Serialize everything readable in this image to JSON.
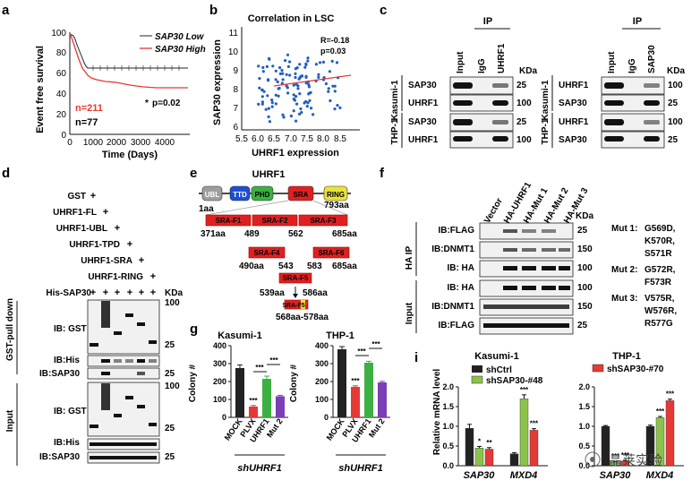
{
  "panel_a": {
    "letter": "a",
    "ylabel": "Event free survival",
    "xlabel": "Time (Days)",
    "legend_low": "SAP30 Low",
    "legend_high": "SAP30 High",
    "p_value": "p=0.02",
    "star": "*",
    "n_high": "n=211",
    "n_low": "n=77",
    "colors": {
      "low": "#222222",
      "high": "#e53935"
    }
  },
  "panel_b": {
    "letter": "b",
    "title": "Correlation in LSC",
    "ylabel": "SAP30 expression",
    "xlabel": "UHRF1 expression",
    "r_value": "R=-0.18",
    "p_value": "p=0.03",
    "point_color": "#1f5fbf",
    "line_color": "#e53935"
  },
  "panel_c": {
    "letter": "c",
    "ip_label": "IP",
    "kda": "KDa",
    "left": {
      "lanes": [
        "Input",
        "IgG",
        "UHRF1"
      ],
      "blots": [
        {
          "cell": "Kasumi-1",
          "protein": "SAP30",
          "mw": "25"
        },
        {
          "cell": "Kasumi-1",
          "protein": "UHRF1",
          "mw": "100"
        },
        {
          "cell": "THP-1",
          "protein": "SAP30",
          "mw": "25"
        },
        {
          "cell": "THP-1",
          "protein": "UHRF1",
          "mw": "100"
        }
      ]
    },
    "right": {
      "lanes": [
        "Input",
        "IgG",
        "SAP30"
      ],
      "blots": [
        {
          "cell": "Kasumi-1",
          "protein": "UHRF1",
          "mw": "100"
        },
        {
          "cell": "Kasumi-1",
          "protein": "SAP30",
          "mw": "25"
        },
        {
          "cell": "THP-1",
          "protein": "UHRF1",
          "mw": "100"
        },
        {
          "cell": "THP-1",
          "protein": "SAP30",
          "mw": "25"
        }
      ]
    },
    "cells": [
      "Kasumi-1",
      "THP-1"
    ]
  },
  "panel_d": {
    "letter": "d",
    "rows": [
      "GST",
      "UHRF1-FL",
      "UHRF1-UBL",
      "UHRF1-TPD",
      "UHRF1-SRA",
      "UHRF1-RING",
      "His-SAP30"
    ],
    "plus": "+",
    "kda": "KDa",
    "section_pulldown": "GST-pull down",
    "section_input": "Input",
    "pulldown_blots": [
      "IB: GST",
      "IB:His",
      "IB:SAP30"
    ],
    "input_blots": [
      "IB: GST",
      "IB:His",
      "IB:SAP30"
    ],
    "mw": [
      "100",
      "25",
      "25",
      "25",
      "100",
      "25"
    ]
  },
  "panel_e": {
    "letter": "e",
    "title": "UHRF1",
    "domains": [
      "UBL",
      "TTD",
      "PHD",
      "SRA",
      "RING"
    ],
    "domain_colors": [
      "#9e9e9e",
      "#1e4fd0",
      "#3cb043",
      "#e02020",
      "#e8e23a"
    ],
    "start": "1aa",
    "end": "793aa",
    "frag1": [
      "SRA-F1",
      "SRA-F2",
      "SRA-F3"
    ],
    "frag1_pos": [
      "371aa",
      "489",
      "562",
      "685aa"
    ],
    "frag2": [
      "SRA-F4",
      "SRA-F6"
    ],
    "frag2_pos": [
      "490aa",
      "543",
      "583",
      "685aa"
    ],
    "frag3": "SRA-F5",
    "frag3_pos": [
      "539aa",
      "586aa"
    ],
    "frag4": "SRA-F5",
    "frag4_pos": "568aa-578aa"
  },
  "panel_f": {
    "letter": "f",
    "lanes": [
      "Vector",
      "HA-UHRF1",
      "HA-Mut 1",
      "HA-Mut 2",
      "HA-Mut 3"
    ],
    "kda": "KDa",
    "section_ip": "HA IP",
    "section_input": "Input",
    "blots_ip": [
      {
        "label": "IB:FLAG",
        "mw": "25"
      },
      {
        "label": "IB:DNMT1",
        "mw": "150"
      },
      {
        "label": "IB: HA",
        "mw": "100"
      }
    ],
    "blots_input": [
      {
        "label": "IB: HA",
        "mw": "100"
      },
      {
        "label": "IB:DNMT1",
        "mw": "150"
      },
      {
        "label": "IB:FLAG",
        "mw": "25"
      }
    ],
    "mutations": [
      {
        "name": "Mut 1:",
        "lines": [
          "G569D,",
          "K570R,",
          "S571R"
        ]
      },
      {
        "name": "Mut 2:",
        "lines": [
          "G572R,",
          "F573R"
        ]
      },
      {
        "name": "Mut 3:",
        "lines": [
          "V575R,",
          "W576R,",
          "R577G"
        ]
      }
    ]
  },
  "panel_g": {
    "letter": "g",
    "group_label": "shUHRF1",
    "chart_data": [
      {
        "type": "bar",
        "title": "Kasumi-1",
        "ylabel": "Colony #",
        "categories": [
          "MOCK",
          "PLVX",
          "UHRF1",
          "Mut 2"
        ],
        "values": [
          275,
          60,
          215,
          118
        ],
        "errors": [
          18,
          6,
          15,
          5
        ],
        "colors": [
          "#222222",
          "#e53935",
          "#3cb043",
          "#7b3fb5"
        ],
        "yticks": [
          0,
          100,
          200,
          300,
          400
        ],
        "ylim": [
          0,
          400
        ],
        "stars": [
          "",
          "***",
          "",
          ""
        ],
        "brackets": [
          "***",
          "***"
        ]
      },
      {
        "type": "bar",
        "title": "THP-1",
        "ylabel": "Colony #",
        "categories": [
          "MOCK",
          "PLVX",
          "UHRF1",
          "Mut 2"
        ],
        "values": [
          380,
          170,
          305,
          195
        ],
        "errors": [
          15,
          6,
          8,
          6
        ],
        "colors": [
          "#222222",
          "#e53935",
          "#3cb043",
          "#7b3fb5"
        ],
        "yticks": [
          0,
          100,
          200,
          300,
          400
        ],
        "ylim": [
          0,
          400
        ],
        "stars": [
          "",
          "***",
          "",
          ""
        ],
        "brackets": [
          "***",
          "***"
        ]
      }
    ]
  },
  "panel_i": {
    "letter": "i",
    "ylabel": "Relative mRNA level",
    "chart_data": [
      {
        "type": "bar",
        "title": "Kasumi-1",
        "legend": [
          "shCtrl",
          "shSAP30-#48"
        ],
        "categories": [
          "SAP30",
          "MXD4"
        ],
        "series": [
          {
            "name": "shCtrl",
            "values": [
              0.95,
              0.3
            ],
            "errors": [
              0.1,
              0.03
            ],
            "color": "#222222"
          },
          {
            "name": "shSAP30-#48",
            "values": [
              0.45,
              1.7
            ],
            "errors": [
              0.04,
              0.1
            ],
            "color": "#8bc34a"
          },
          {
            "name": "shSAP30-#70",
            "values": [
              0.42,
              0.9
            ],
            "errors": [
              0.04,
              0.04
            ],
            "color": "#e53935"
          }
        ],
        "stars": [
          [
            "",
            "*",
            "**"
          ],
          [
            "",
            "***",
            "***"
          ]
        ],
        "yticks": [
          "0.0",
          "0.5",
          "1.0",
          "1.5",
          "2.0"
        ],
        "ylim": [
          0,
          2.0
        ]
      },
      {
        "type": "bar",
        "title": "THP-1",
        "legend": [
          "shSAP30-#70"
        ],
        "categories": [
          "SAP30",
          "MXD4"
        ],
        "series": [
          {
            "name": "shCtrl",
            "values": [
              1.0,
              1.0
            ],
            "errors": [
              0.02,
              0.03
            ],
            "color": "#222222"
          },
          {
            "name": "shSAP30-#48",
            "values": [
              0.1,
              1.22
            ],
            "errors": [
              0.01,
              0.03
            ],
            "color": "#8bc34a"
          },
          {
            "name": "shSAP30-#70",
            "values": [
              0.12,
              1.65
            ],
            "errors": [
              0.02,
              0.04
            ],
            "color": "#e53935"
          }
        ],
        "stars": [
          [
            "",
            "***",
            "***"
          ],
          [
            "",
            "***",
            "***"
          ]
        ],
        "yticks": [
          "0.0",
          "0.5",
          "1.0",
          "1.5",
          "2.0"
        ],
        "ylim": [
          0,
          2.0
        ]
      }
    ]
  },
  "watermark": "晶莱实验"
}
